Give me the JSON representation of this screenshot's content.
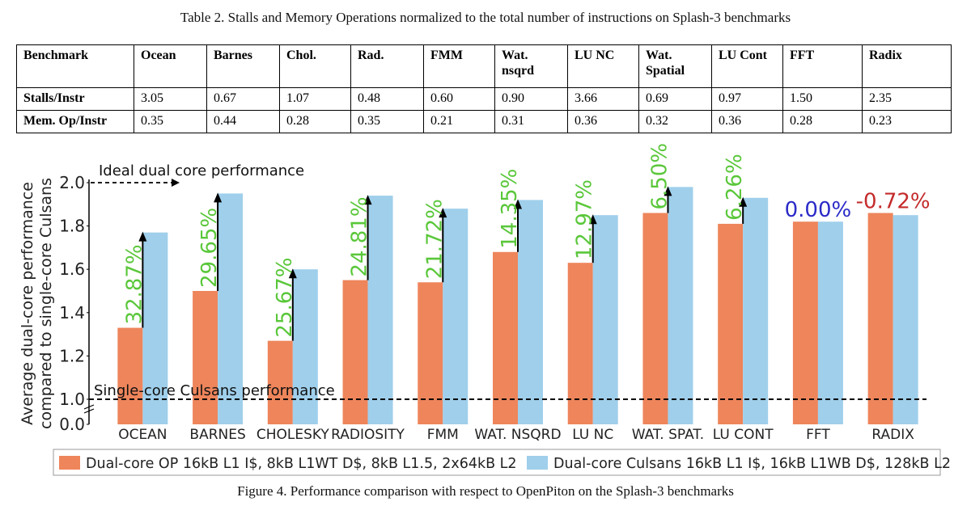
{
  "table_caption": "Table 2. Stalls and Memory Operations normalized to the total number of instructions on Splash-3 benchmarks",
  "table": {
    "header": [
      "Benchmark",
      "Ocean",
      "Barnes",
      "Chol.",
      "Rad.",
      "FMM",
      "Wat. nsqrd",
      "LU NC",
      "Wat. Spatial",
      "LU Cont",
      "FFT",
      "Radix"
    ],
    "rows": [
      {
        "label": "Stalls/Instr",
        "values": [
          "3.05",
          "0.67",
          "1.07",
          "0.48",
          "0.60",
          "0.90",
          "3.66",
          "0.69",
          "0.97",
          "1.50",
          "2.35"
        ]
      },
      {
        "label": "Mem. Op/Instr",
        "values": [
          "0.35",
          "0.44",
          "0.28",
          "0.35",
          "0.21",
          "0.31",
          "0.36",
          "0.32",
          "0.36",
          "0.28",
          "0.23"
        ]
      }
    ]
  },
  "figure_caption": "Figure 4. Performance comparison with respect to OpenPiton on the Splash-3 benchmarks",
  "chart_data": {
    "type": "bar",
    "title": "",
    "ylabel": "Average dual-core performance compared to single-core Culsans",
    "xlabel": "",
    "ylim": [
      0.0,
      2.0
    ],
    "yticks": [
      "0.0",
      "1.0",
      "1.2",
      "1.4",
      "1.6",
      "1.8",
      "2.0"
    ],
    "axis_break": true,
    "categories": [
      "OCEAN",
      "BARNES",
      "CHOLESKY",
      "RADIOSITY",
      "FMM",
      "WAT. NSQRD",
      "LU NC",
      "WAT. SPAT.",
      "LU CONT",
      "FFT",
      "RADIX"
    ],
    "series": [
      {
        "name": "Dual-core OP 16kB L1 I$, 8kB L1WT D$, 8kB L1.5, 2x64kB L2",
        "color": "#ee855b",
        "values": [
          1.33,
          1.5,
          1.27,
          1.55,
          1.54,
          1.68,
          1.63,
          1.86,
          1.81,
          1.82,
          1.86
        ]
      },
      {
        "name": "Dual-core Culsans 16kB L1 I$, 16kB L1WB D$, 128kB L2",
        "color": "#9fcfeb",
        "values": [
          1.77,
          1.95,
          1.6,
          1.94,
          1.88,
          1.92,
          1.85,
          1.98,
          1.93,
          1.82,
          1.85
        ]
      }
    ],
    "improvements": [
      "32.87%",
      "29.65%",
      "25.67%",
      "24.81%",
      "21.72%",
      "14.35%",
      "12.97%",
      "6.50%",
      "6.26%",
      "0.00%",
      "-0.72%"
    ],
    "improvement_colors": [
      "#5ac73a",
      "#5ac73a",
      "#5ac73a",
      "#5ac73a",
      "#5ac73a",
      "#5ac73a",
      "#5ac73a",
      "#5ac73a",
      "#5ac73a",
      "#2b2bc8",
      "#c42b2b"
    ],
    "reference_lines": [
      {
        "label": "Ideal dual core performance",
        "value": 2.0
      },
      {
        "label": "Single-core Culsans performance",
        "value": 1.0
      }
    ],
    "legend_position": "bottom"
  }
}
